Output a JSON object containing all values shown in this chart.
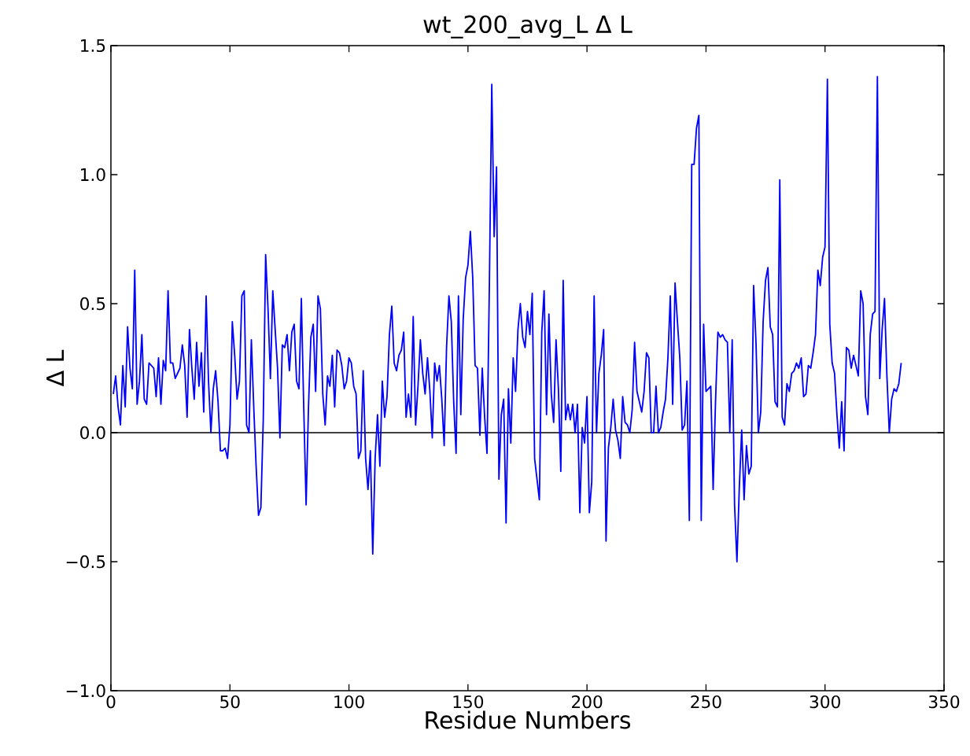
{
  "chart_data": {
    "type": "line",
    "title": "wt_200_avg_L Δ L",
    "xlabel": "Residue Numbers",
    "ylabel": "Δ L",
    "xlim": [
      0,
      350
    ],
    "xticks": [
      0,
      50,
      100,
      150,
      200,
      250,
      300,
      350
    ],
    "ylim": [
      -1.0,
      1.5
    ],
    "yticks": [
      {
        "value": -1.0,
        "label": "−1.0"
      },
      {
        "value": -0.5,
        "label": "−0.5"
      },
      {
        "value": 0.0,
        "label": "0.0"
      },
      {
        "value": 0.5,
        "label": "0.5"
      },
      {
        "value": 1.0,
        "label": "1.0"
      },
      {
        "value": 1.5,
        "label": "1.5"
      }
    ],
    "ref_lines": [
      {
        "axis": "y",
        "value": 0,
        "color": "#000000"
      }
    ],
    "series": [
      {
        "color": "#0000ff",
        "x": [
          1,
          2,
          3,
          4,
          5,
          6,
          7,
          8,
          9,
          10,
          11,
          12,
          13,
          14,
          15,
          16,
          17,
          18,
          19,
          20,
          21,
          22,
          23,
          24,
          25,
          26,
          27,
          28,
          29,
          30,
          31,
          32,
          33,
          34,
          35,
          36,
          37,
          38,
          39,
          40,
          41,
          42,
          43,
          44,
          45,
          46,
          47,
          48,
          49,
          50,
          51,
          52,
          53,
          54,
          55,
          56,
          57,
          58,
          59,
          60,
          61,
          62,
          63,
          64,
          65,
          66,
          67,
          68,
          69,
          70,
          71,
          72,
          73,
          74,
          75,
          76,
          77,
          78,
          79,
          80,
          81,
          82,
          83,
          84,
          85,
          86,
          87,
          88,
          89,
          90,
          91,
          92,
          93,
          94,
          95,
          96,
          97,
          98,
          99,
          100,
          101,
          102,
          103,
          104,
          105,
          106,
          107,
          108,
          109,
          110,
          111,
          112,
          113,
          114,
          115,
          116,
          117,
          118,
          119,
          120,
          121,
          122,
          123,
          124,
          125,
          126,
          127,
          128,
          129,
          130,
          131,
          132,
          133,
          134,
          135,
          136,
          137,
          138,
          139,
          140,
          141,
          142,
          143,
          144,
          145,
          146,
          147,
          148,
          149,
          150,
          151,
          152,
          153,
          154,
          155,
          156,
          157,
          158,
          159,
          160,
          161,
          162,
          163,
          164,
          165,
          166,
          167,
          168,
          169,
          170,
          171,
          172,
          173,
          174,
          175,
          176,
          177,
          178,
          179,
          180,
          181,
          182,
          183,
          184,
          185,
          186,
          187,
          188,
          189,
          190,
          191,
          192,
          193,
          194,
          195,
          196,
          197,
          198,
          199,
          200,
          201,
          202,
          203,
          204,
          205,
          206,
          207,
          208,
          209,
          210,
          211,
          212,
          213,
          214,
          215,
          216,
          217,
          218,
          219,
          220,
          221,
          222,
          223,
          224,
          225,
          226,
          227,
          228,
          229,
          230,
          231,
          232,
          233,
          234,
          235,
          236,
          237,
          238,
          239,
          240,
          241,
          242,
          243,
          244,
          245,
          246,
          247,
          248,
          249,
          250,
          251,
          252,
          253,
          254,
          255,
          256,
          257,
          258,
          259,
          260,
          261,
          262,
          263,
          264,
          265,
          266,
          267,
          268,
          269,
          270,
          271,
          272,
          273,
          274,
          275,
          276,
          277,
          278,
          279,
          280,
          281,
          282,
          283,
          284,
          285,
          286,
          287,
          288,
          289,
          290,
          291,
          292,
          293,
          294,
          295,
          296,
          297,
          298,
          299,
          300,
          301,
          302,
          303,
          304,
          305,
          306,
          307,
          308,
          309,
          310,
          311,
          312,
          313,
          314,
          315,
          316,
          317,
          318,
          319,
          320,
          321,
          322,
          323,
          324,
          325,
          326,
          327,
          328,
          329,
          330,
          331,
          332
        ],
        "values": [
          0.15,
          0.22,
          0.1,
          0.03,
          0.26,
          0.1,
          0.41,
          0.25,
          0.17,
          0.63,
          0.11,
          0.2,
          0.38,
          0.13,
          0.11,
          0.27,
          0.26,
          0.25,
          0.14,
          0.29,
          0.11,
          0.28,
          0.24,
          0.55,
          0.27,
          0.27,
          0.21,
          0.23,
          0.25,
          0.34,
          0.26,
          0.06,
          0.4,
          0.25,
          0.13,
          0.35,
          0.18,
          0.31,
          0.08,
          0.53,
          0.2,
          0.0,
          0.17,
          0.24,
          0.12,
          -0.07,
          -0.07,
          -0.06,
          -0.1,
          0.03,
          0.43,
          0.3,
          0.13,
          0.2,
          0.53,
          0.55,
          0.03,
          0.0,
          0.36,
          0.1,
          -0.13,
          -0.32,
          -0.29,
          0.05,
          0.69,
          0.48,
          0.21,
          0.55,
          0.4,
          0.25,
          -0.02,
          0.34,
          0.33,
          0.38,
          0.24,
          0.39,
          0.42,
          0.2,
          0.17,
          0.52,
          0.1,
          -0.28,
          0.1,
          0.37,
          0.42,
          0.16,
          0.53,
          0.48,
          0.15,
          0.03,
          0.22,
          0.18,
          0.3,
          0.1,
          0.32,
          0.31,
          0.26,
          0.17,
          0.2,
          0.29,
          0.27,
          0.18,
          0.15,
          -0.1,
          -0.07,
          0.24,
          -0.1,
          -0.22,
          -0.07,
          -0.47,
          -0.1,
          0.07,
          -0.13,
          0.2,
          0.06,
          0.14,
          0.38,
          0.49,
          0.27,
          0.24,
          0.3,
          0.32,
          0.39,
          0.06,
          0.15,
          0.06,
          0.45,
          0.03,
          0.18,
          0.36,
          0.23,
          0.15,
          0.29,
          0.16,
          -0.02,
          0.27,
          0.2,
          0.26,
          0.13,
          -0.05,
          0.33,
          0.53,
          0.43,
          0.12,
          -0.08,
          0.53,
          0.07,
          0.44,
          0.6,
          0.65,
          0.78,
          0.6,
          0.26,
          0.25,
          -0.01,
          0.25,
          0.06,
          -0.08,
          0.58,
          1.35,
          0.76,
          1.03,
          -0.18,
          0.07,
          0.13,
          -0.35,
          0.17,
          -0.04,
          0.29,
          0.16,
          0.4,
          0.5,
          0.37,
          0.33,
          0.47,
          0.38,
          0.54,
          -0.1,
          -0.18,
          -0.26,
          0.39,
          0.55,
          0.07,
          0.46,
          0.15,
          0.04,
          0.36,
          0.17,
          -0.15,
          0.59,
          0.05,
          0.11,
          0.05,
          0.11,
          0.0,
          0.11,
          -0.31,
          0.02,
          -0.04,
          0.14,
          -0.31,
          -0.19,
          0.53,
          0.0,
          0.23,
          0.3,
          0.4,
          -0.42,
          -0.06,
          0.02,
          0.13,
          0.01,
          -0.03,
          -0.1,
          0.14,
          0.04,
          0.03,
          0.0,
          0.09,
          0.35,
          0.16,
          0.12,
          0.08,
          0.16,
          0.31,
          0.29,
          0.0,
          0.0,
          0.18,
          0.0,
          0.02,
          0.08,
          0.13,
          0.29,
          0.53,
          0.11,
          0.58,
          0.43,
          0.29,
          0.01,
          0.03,
          0.2,
          -0.34,
          1.04,
          1.04,
          1.18,
          1.23,
          -0.34,
          0.42,
          0.16,
          0.17,
          0.18,
          -0.22,
          0.12,
          0.39,
          0.37,
          0.38,
          0.36,
          0.35,
          0.0,
          0.36,
          -0.28,
          -0.5,
          -0.21,
          0.01,
          -0.26,
          -0.05,
          -0.16,
          -0.13,
          0.57,
          0.35,
          0.0,
          0.08,
          0.43,
          0.59,
          0.64,
          0.41,
          0.38,
          0.12,
          0.1,
          0.98,
          0.06,
          0.03,
          0.19,
          0.16,
          0.23,
          0.24,
          0.27,
          0.25,
          0.29,
          0.14,
          0.15,
          0.26,
          0.25,
          0.31,
          0.38,
          0.63,
          0.57,
          0.68,
          0.72,
          1.37,
          0.42,
          0.27,
          0.23,
          0.07,
          -0.06,
          0.12,
          -0.07,
          0.33,
          0.32,
          0.25,
          0.3,
          0.26,
          0.22,
          0.55,
          0.5,
          0.14,
          0.07,
          0.38,
          0.46,
          0.47,
          1.38,
          0.21,
          0.4,
          0.52,
          0.22,
          0.0,
          0.13,
          0.17,
          0.16,
          0.19,
          0.27
        ]
      }
    ]
  }
}
